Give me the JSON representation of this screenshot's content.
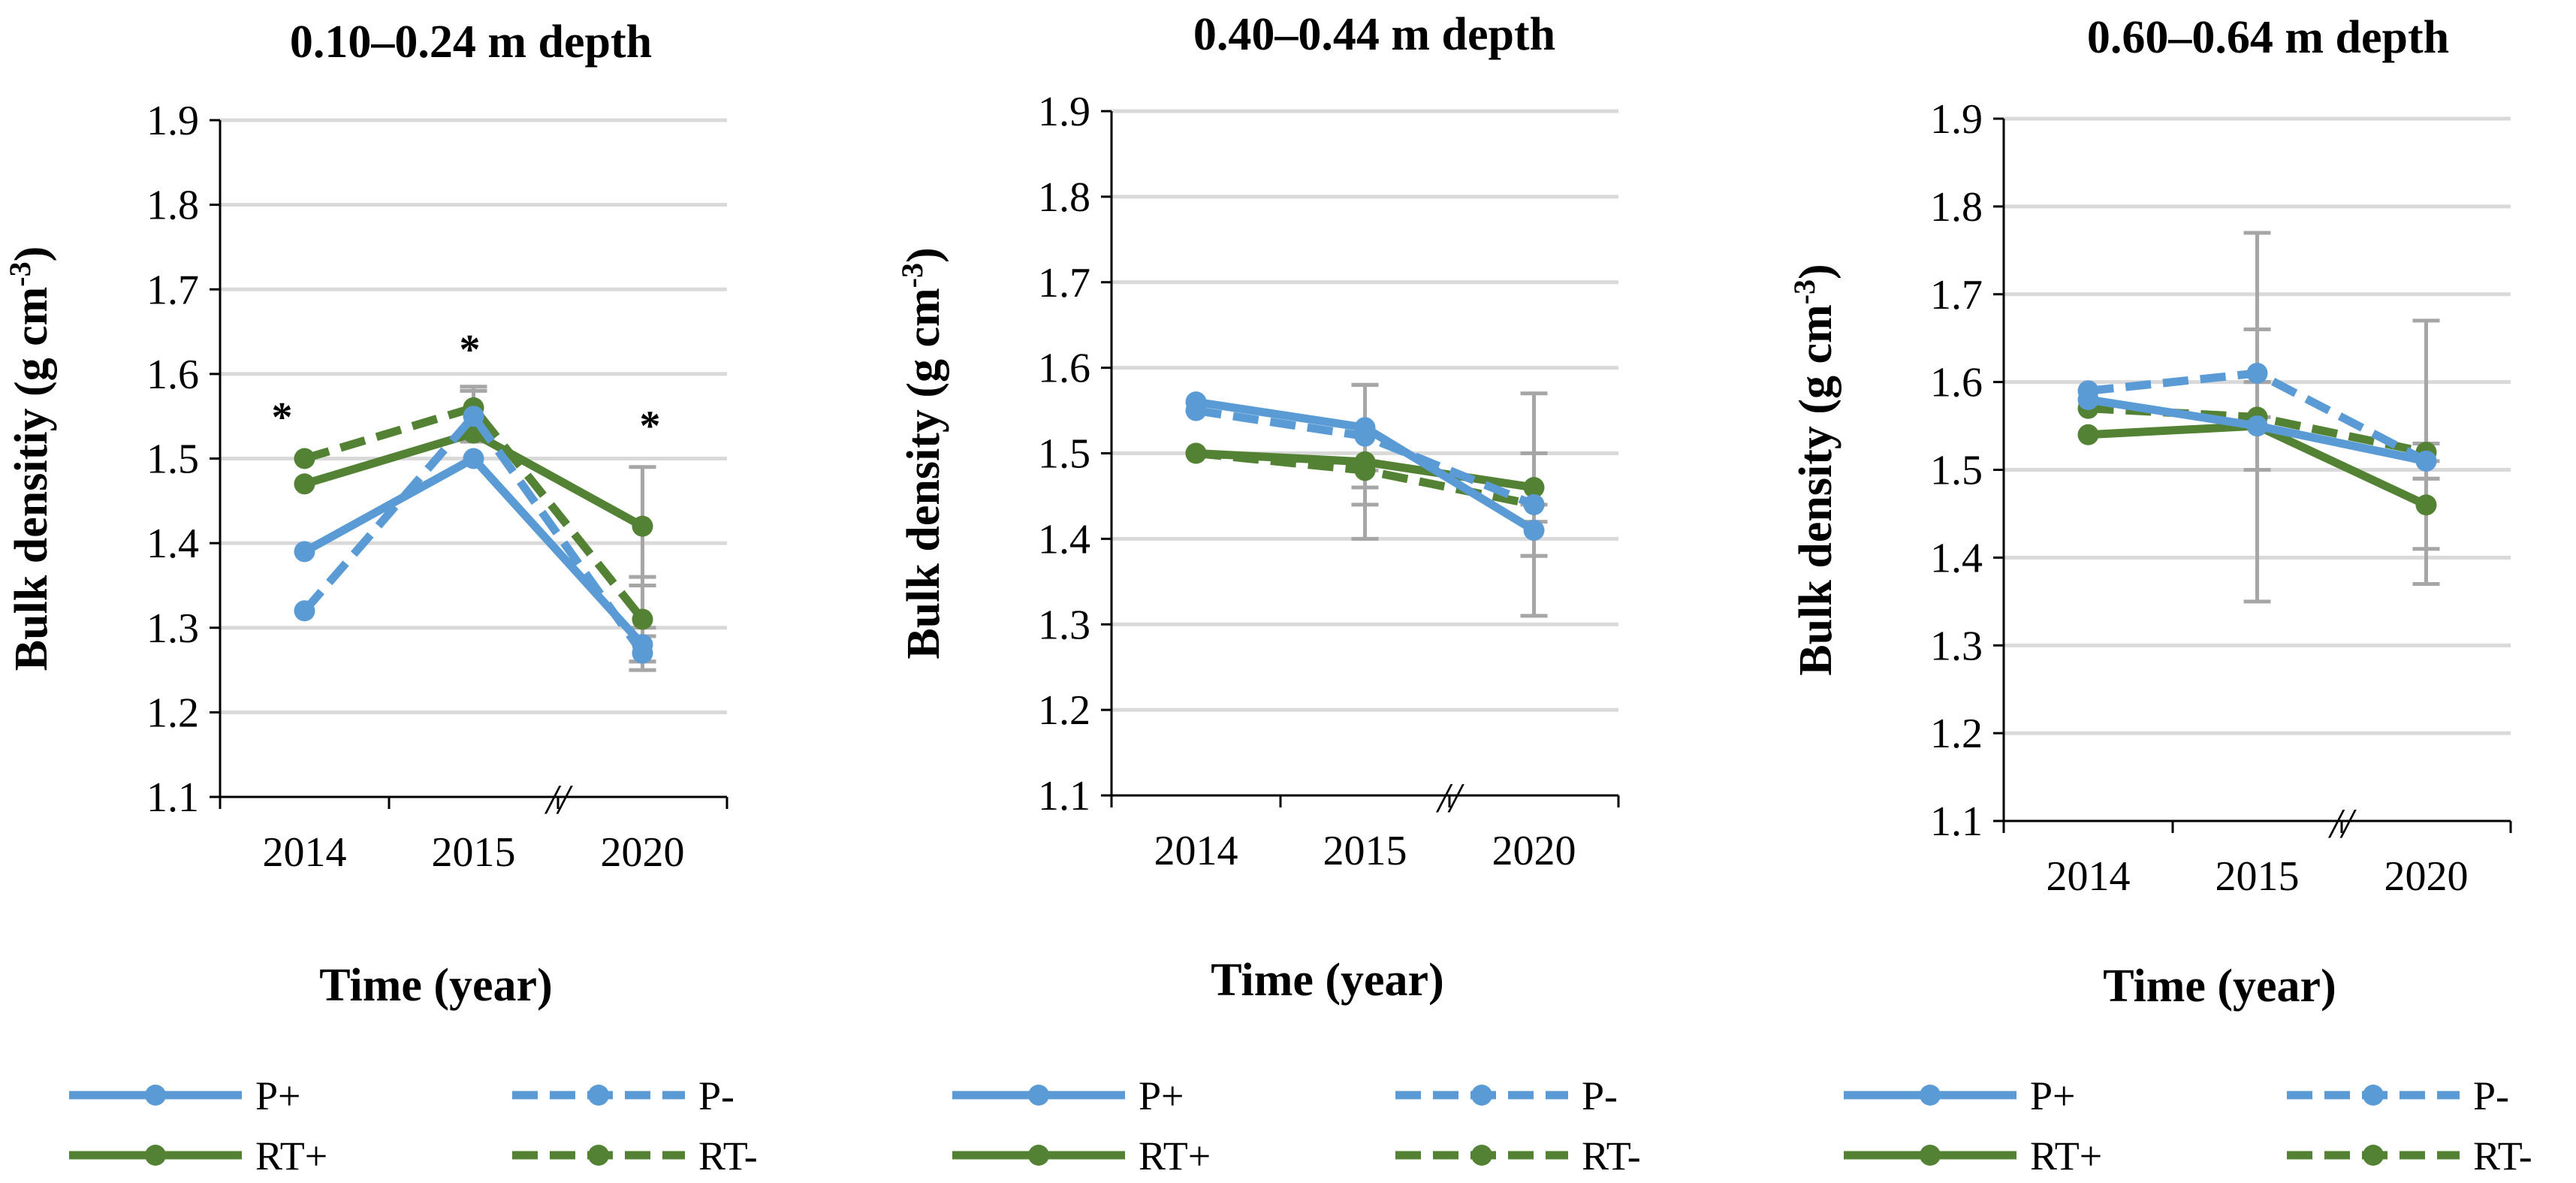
{
  "chart_data": [
    {
      "type": "line",
      "title": "0.10–0.24 m depth",
      "ylabel_main": "Bulk densitiy (g cm",
      "ylabel_sup": "-3",
      "ylabel_close": ")",
      "xlabel": "Time (year)",
      "categories": [
        "2014",
        "2015",
        "2020"
      ],
      "ylim": [
        1.1,
        1.9
      ],
      "yticks": [
        "1.1",
        "1.2",
        "1.3",
        "1.4",
        "1.5",
        "1.6",
        "1.7",
        "1.8",
        "1.9"
      ],
      "axis_break": "//",
      "grid": true,
      "annotations": [
        {
          "text": "*",
          "category": "2014",
          "y": 1.55
        },
        {
          "text": "*",
          "category": "2015",
          "y": 1.63
        },
        {
          "text": "*",
          "category": "2020",
          "y": 1.54
        }
      ],
      "series": [
        {
          "name": "P+",
          "values": [
            1.39,
            1.5,
            1.28
          ],
          "err": [
            0,
            0,
            0.02
          ]
        },
        {
          "name": "P-",
          "values": [
            1.32,
            1.55,
            1.27
          ],
          "err": [
            0,
            0.03,
            0.02
          ]
        },
        {
          "name": "RT+",
          "values": [
            1.47,
            1.53,
            1.42
          ],
          "err": [
            0,
            0,
            0.07
          ]
        },
        {
          "name": "RT-",
          "values": [
            1.5,
            1.56,
            1.31
          ],
          "err": [
            0,
            0.025,
            0.05
          ]
        }
      ]
    },
    {
      "type": "line",
      "title": "0.40–0.44 m depth",
      "ylabel_main": "Bulk density (g cm",
      "ylabel_sup": "-3",
      "ylabel_close": ")",
      "xlabel": "Time (year)",
      "categories": [
        "2014",
        "2015",
        "2020"
      ],
      "ylim": [
        1.1,
        1.9
      ],
      "yticks": [
        "1.1",
        "1.2",
        "1.3",
        "1.4",
        "1.5",
        "1.6",
        "1.7",
        "1.8",
        "1.9"
      ],
      "axis_break": "//",
      "grid": true,
      "annotations": [],
      "series": [
        {
          "name": "P+",
          "values": [
            1.56,
            1.53,
            1.41
          ],
          "err": [
            0,
            0.05,
            0.03
          ]
        },
        {
          "name": "P-",
          "values": [
            1.55,
            1.52,
            1.44
          ],
          "err": [
            0,
            0.06,
            0.06
          ]
        },
        {
          "name": "RT+",
          "values": [
            1.5,
            1.49,
            1.46
          ],
          "err": [
            0,
            0.09,
            0.04
          ]
        },
        {
          "name": "RT-",
          "values": [
            1.5,
            1.48,
            1.44
          ],
          "err": [
            0,
            0.04,
            0.13
          ]
        }
      ]
    },
    {
      "type": "line",
      "title": "0.60–0.64 m depth",
      "ylabel_main": "Bulk density (g cm",
      "ylabel_sup": "-3",
      "ylabel_close": ")",
      "xlabel": "Time (year)",
      "categories": [
        "2014",
        "2015",
        "2020"
      ],
      "ylim": [
        1.1,
        1.9
      ],
      "yticks": [
        "1.1",
        "1.2",
        "1.3",
        "1.4",
        "1.5",
        "1.6",
        "1.7",
        "1.8",
        "1.9"
      ],
      "axis_break": "//",
      "grid": true,
      "annotations": [],
      "series": [
        {
          "name": "P+",
          "values": [
            1.58,
            1.55,
            1.51
          ],
          "err": [
            0,
            0.05,
            0.02
          ]
        },
        {
          "name": "P-",
          "values": [
            1.59,
            1.61,
            1.51
          ],
          "err": [
            0,
            0.05,
            0.02
          ]
        },
        {
          "name": "RT+",
          "values": [
            1.54,
            1.55,
            1.46
          ],
          "err": [
            0,
            0.05,
            0.05
          ]
        },
        {
          "name": "RT-",
          "values": [
            1.57,
            1.56,
            1.52
          ],
          "err": [
            0,
            0.21,
            0.15
          ]
        }
      ]
    }
  ],
  "legend": {
    "placement": "bottom",
    "entries": [
      {
        "name": "P+",
        "color": "#5b9bd5",
        "dash": false
      },
      {
        "name": "P-",
        "color": "#5b9bd5",
        "dash": true
      },
      {
        "name": "RT+",
        "color": "#548235",
        "dash": false
      },
      {
        "name": "RT-",
        "color": "#548235",
        "dash": true
      }
    ]
  },
  "colors": {
    "P": "#5b9bd5",
    "RT": "#548235",
    "grid": "#d9d9d9",
    "errorbar": "#a6a6a6",
    "axis": "#000000"
  }
}
